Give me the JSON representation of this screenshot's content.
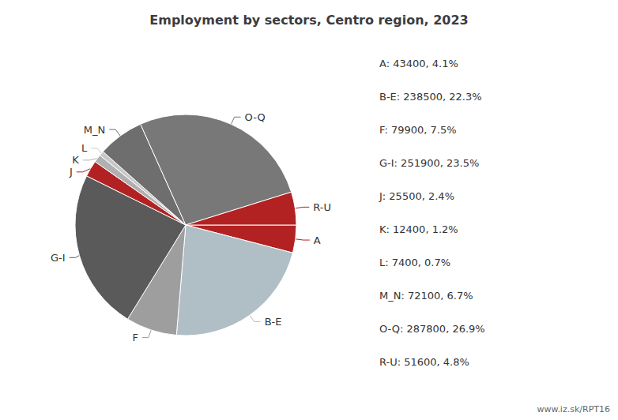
{
  "chart_data": {
    "type": "pie",
    "title": "Employment by sectors, Centro region, 2023",
    "categories": [
      "A",
      "B-E",
      "F",
      "G-I",
      "J",
      "K",
      "L",
      "M_N",
      "O-Q",
      "R-U"
    ],
    "values": [
      43400,
      238500,
      79900,
      251900,
      25500,
      12400,
      7400,
      72100,
      287800,
      51600
    ],
    "colors": [
      "#b22222",
      "#b0bec5",
      "#9e9e9e",
      "#5a5a5a",
      "#b22222",
      "#b0b0b0",
      "#c8c8c8",
      "#6e6e6e",
      "#787878",
      "#b22222"
    ],
    "annotations": [
      "A: 43400, 4.1%",
      "B-E: 238500, 22.3%",
      "F: 79900, 7.5%",
      "G-I: 251900, 23.5%",
      "J: 25500, 2.4%",
      "K: 12400, 1.2%",
      "L: 7400, 0.7%",
      "M_N: 72100, 6.7%",
      "O-Q: 287800, 26.9%",
      "R-U: 51600, 4.8%",
      "www.iz.sk/RPT16"
    ]
  }
}
